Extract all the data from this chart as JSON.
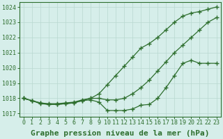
{
  "title": "",
  "xlabel": "Graphe pression niveau de la mer (hPa)",
  "xlim": [
    -0.5,
    23.5
  ],
  "ylim": [
    1016.8,
    1024.3
  ],
  "yticks": [
    1017,
    1018,
    1019,
    1020,
    1021,
    1022,
    1023,
    1024
  ],
  "xticks": [
    0,
    1,
    2,
    3,
    4,
    5,
    6,
    7,
    8,
    9,
    10,
    11,
    12,
    13,
    14,
    15,
    16,
    17,
    18,
    19,
    20,
    21,
    22,
    23
  ],
  "bg_color": "#d6eeea",
  "line_color": "#2d6e2d",
  "line1_x": [
    0,
    1,
    2,
    3,
    4,
    5,
    6,
    7,
    8,
    9,
    10,
    11,
    12,
    13,
    14,
    15,
    16,
    17,
    18,
    19,
    20,
    21,
    22,
    23
  ],
  "line1_y": [
    1018.0,
    1017.85,
    1017.7,
    1017.65,
    1017.65,
    1017.7,
    1017.75,
    1017.9,
    1018.0,
    1018.3,
    1018.9,
    1019.5,
    1020.1,
    1020.7,
    1021.3,
    1021.6,
    1022.0,
    1022.5,
    1023.0,
    1023.4,
    1023.6,
    1023.7,
    1023.85,
    1024.0
  ],
  "line2_x": [
    0,
    1,
    2,
    3,
    4,
    5,
    6,
    7,
    8,
    9,
    10,
    11,
    12,
    13,
    14,
    15,
    16,
    17,
    18,
    19,
    20,
    21,
    22,
    23
  ],
  "line2_y": [
    1018.0,
    1017.85,
    1017.7,
    1017.6,
    1017.6,
    1017.65,
    1017.7,
    1017.85,
    1018.0,
    1018.0,
    1017.9,
    1017.9,
    1018.0,
    1018.3,
    1018.7,
    1019.2,
    1019.8,
    1020.4,
    1021.0,
    1021.5,
    1022.0,
    1022.5,
    1023.0,
    1023.3
  ],
  "line3_x": [
    0,
    1,
    2,
    3,
    4,
    5,
    6,
    7,
    8,
    9,
    10,
    11,
    12,
    13,
    14,
    15,
    16,
    17,
    18,
    19,
    20,
    21,
    22,
    23
  ],
  "line3_y": [
    1018.0,
    1017.85,
    1017.65,
    1017.6,
    1017.6,
    1017.65,
    1017.7,
    1017.85,
    1017.9,
    1017.75,
    1017.2,
    1017.2,
    1017.2,
    1017.3,
    1017.55,
    1017.6,
    1018.0,
    1018.7,
    1019.5,
    1020.3,
    1020.5,
    1020.3,
    1020.3,
    1020.3
  ],
  "marker": "+",
  "marker_size": 4,
  "linewidth": 0.9,
  "xlabel_fontsize": 8,
  "tick_fontsize": 6,
  "grid_color": "#b8d8d0",
  "grid_linewidth": 0.5
}
